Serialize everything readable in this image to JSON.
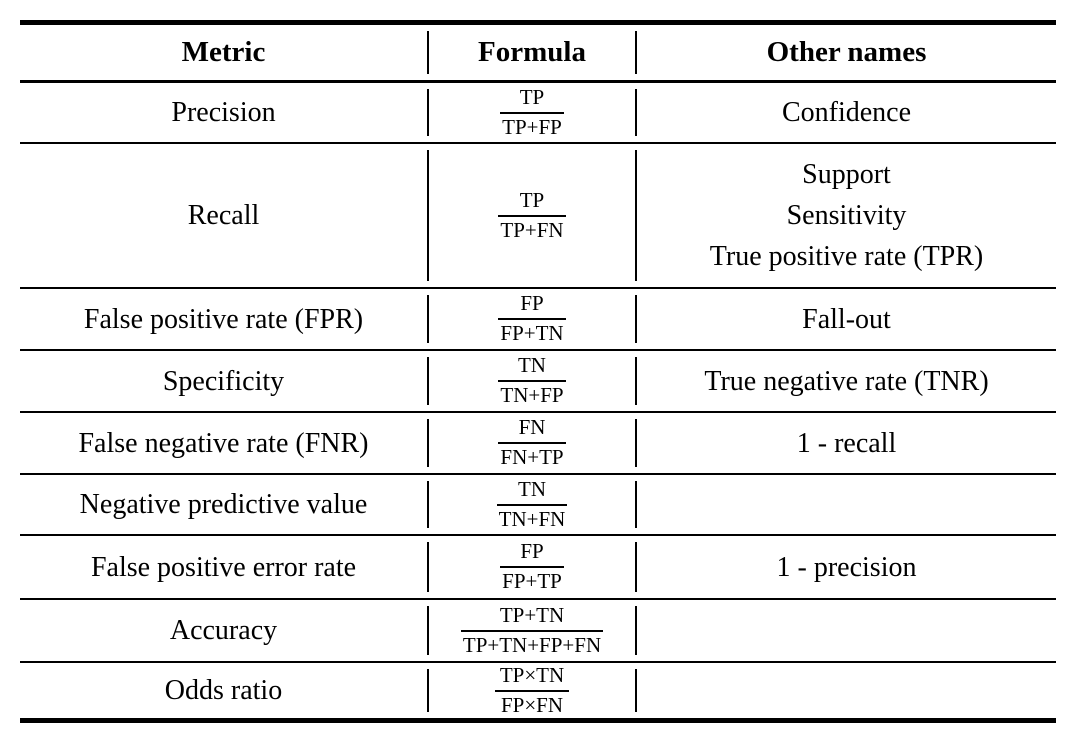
{
  "table": {
    "headers": {
      "metric": "Metric",
      "formula": "Formula",
      "other_names": "Other names"
    },
    "rows": [
      {
        "metric": "Precision",
        "formula": {
          "num": "TP",
          "den": "TP+FP"
        },
        "other_names": [
          "Confidence"
        ]
      },
      {
        "metric": "Recall",
        "formula": {
          "num": "TP",
          "den": "TP+FN"
        },
        "other_names": [
          "Support",
          "Sensitivity",
          "True positive rate (TPR)"
        ]
      },
      {
        "metric": "False positive rate (FPR)",
        "formula": {
          "num": "FP",
          "den": "FP+TN"
        },
        "other_names": [
          "Fall-out"
        ]
      },
      {
        "metric": "Specificity",
        "formula": {
          "num": "TN",
          "den": "TN+FP"
        },
        "other_names": [
          "True negative rate (TNR)"
        ]
      },
      {
        "metric": "False negative rate (FNR)",
        "formula": {
          "num": "FN",
          "den": "FN+TP"
        },
        "other_names": [
          "1 - recall"
        ]
      },
      {
        "metric": "Negative predictive value",
        "formula": {
          "num": "TN",
          "den": "TN+FN"
        },
        "other_names": []
      },
      {
        "metric": "False positive error rate",
        "formula": {
          "num": "FP",
          "den": "FP+TP"
        },
        "other_names": [
          "1 - precision"
        ]
      },
      {
        "metric": "Accuracy",
        "formula": {
          "num": "TP+TN",
          "den": "TP+TN+FP+FN"
        },
        "other_names": []
      },
      {
        "metric": "Odds ratio",
        "formula": {
          "num": "TP×TN",
          "den": "FP×FN"
        },
        "other_names": []
      }
    ],
    "colors": {
      "text": "#000000",
      "rule": "#000000",
      "background": "#ffffff"
    }
  }
}
